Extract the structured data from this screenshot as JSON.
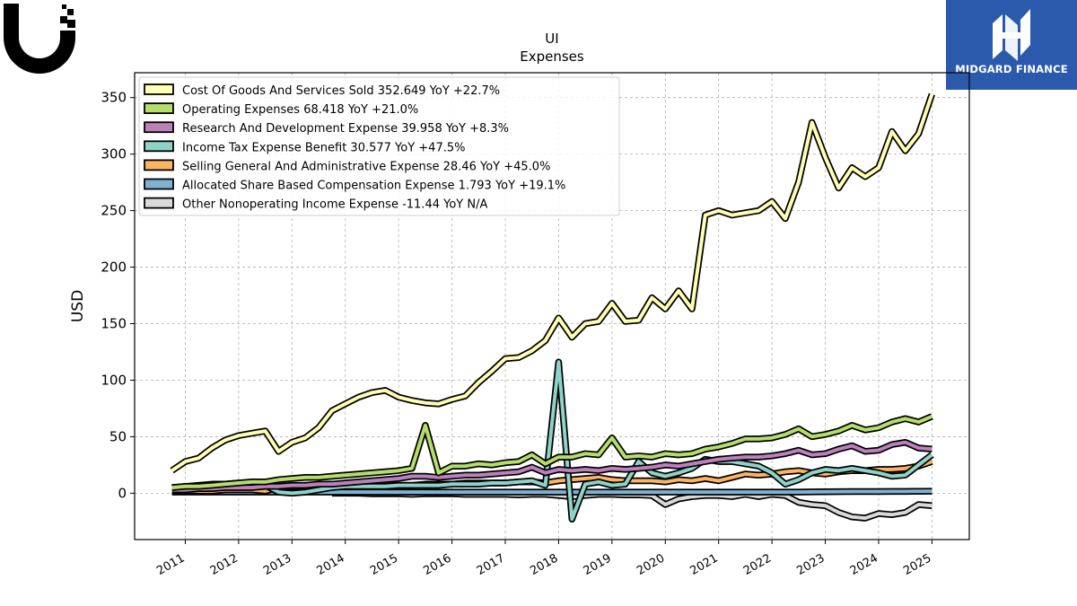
{
  "header": {
    "left_logo_icon": "ubiquiti-u-logo-icon",
    "right_logo_icon": "midgard-finance-logo-icon",
    "right_logo_text": "MIDGARD FINANCE"
  },
  "colors": {
    "brand_blue": "#2b5aad",
    "frame": "#000000",
    "grid": "#b0b0b0"
  },
  "chart_data": {
    "type": "line",
    "title": "UI",
    "subtitle": "Expenses",
    "ylabel": "USD",
    "xlabel": "",
    "xlim": [
      2010.05,
      2025.7
    ],
    "ylim": [
      -41,
      372
    ],
    "yticks": [
      0,
      50,
      100,
      150,
      200,
      250,
      300,
      350
    ],
    "xticks": [
      "2011",
      "2012",
      "2013",
      "2014",
      "2015",
      "2016",
      "2017",
      "2018",
      "2019",
      "2020",
      "2021",
      "2022",
      "2023",
      "2024",
      "2025"
    ],
    "grid": true,
    "legend_position": "top-left",
    "series": [
      {
        "name": "Cost Of Goods And Services Sold",
        "legend": "Cost Of Goods And Services Sold  352.649 YoY +22.7%",
        "color": "#ffffb3",
        "x": [
          2010.75,
          2011.0,
          2011.25,
          2011.5,
          2011.75,
          2012.0,
          2012.25,
          2012.5,
          2012.75,
          2013.0,
          2013.25,
          2013.5,
          2013.75,
          2014.0,
          2014.25,
          2014.5,
          2014.75,
          2015.0,
          2015.25,
          2015.5,
          2015.75,
          2016.0,
          2016.25,
          2016.5,
          2016.75,
          2017.0,
          2017.25,
          2017.5,
          2017.75,
          2018.0,
          2018.25,
          2018.5,
          2018.75,
          2019.0,
          2019.25,
          2019.5,
          2019.75,
          2020.0,
          2020.25,
          2020.5,
          2020.75,
          2021.0,
          2021.25,
          2021.5,
          2021.75,
          2022.0,
          2022.25,
          2022.5,
          2022.75,
          2023.0,
          2023.25,
          2023.5,
          2023.75,
          2024.0,
          2024.25,
          2024.5,
          2024.75,
          2025.0
        ],
        "y": [
          20,
          28,
          31,
          40,
          47,
          51,
          53,
          55,
          37,
          45,
          49,
          58,
          73,
          79,
          85,
          89,
          91,
          85,
          82,
          80,
          79,
          83,
          86,
          98,
          108,
          119,
          120,
          126,
          135,
          155,
          138,
          150,
          152,
          168,
          152,
          153,
          173,
          163,
          179,
          163,
          246,
          250,
          246,
          248,
          250,
          258,
          243,
          275,
          328,
          297,
          270,
          288,
          280,
          288,
          320,
          303,
          318,
          353
        ]
      },
      {
        "name": "Operating Expenses",
        "legend": "Operating Expenses  68.418 YoY +21.0%",
        "color": "#b3de69",
        "x": [
          2010.75,
          2011.0,
          2011.25,
          2011.5,
          2011.75,
          2012.0,
          2012.25,
          2012.5,
          2012.75,
          2013.0,
          2013.25,
          2013.5,
          2013.75,
          2014.0,
          2014.25,
          2014.5,
          2014.75,
          2015.0,
          2015.25,
          2015.5,
          2015.75,
          2016.0,
          2016.25,
          2016.5,
          2016.75,
          2017.0,
          2017.25,
          2017.5,
          2017.75,
          2018.0,
          2018.25,
          2018.5,
          2018.75,
          2019.0,
          2019.25,
          2019.5,
          2019.75,
          2020.0,
          2020.25,
          2020.5,
          2020.75,
          2021.0,
          2021.25,
          2021.5,
          2021.75,
          2022.0,
          2022.25,
          2022.5,
          2022.75,
          2023.0,
          2023.25,
          2023.5,
          2023.75,
          2024.0,
          2024.25,
          2024.5,
          2024.75,
          2025.0
        ],
        "y": [
          5,
          6,
          6,
          7,
          8,
          9,
          10,
          10,
          12,
          13,
          14,
          14,
          15,
          16,
          17,
          18,
          19,
          20,
          22,
          60,
          18,
          24,
          24,
          26,
          25,
          27,
          28,
          34,
          26,
          32,
          32,
          35,
          34,
          49,
          32,
          33,
          32,
          35,
          34,
          35,
          39,
          41,
          44,
          48,
          48,
          49,
          52,
          57,
          50,
          52,
          55,
          60,
          56,
          58,
          63,
          66,
          63,
          68
        ]
      },
      {
        "name": "Research And Development Expense",
        "legend": "Research And Development Expense  39.958 YoY +8.3%",
        "color": "#bc80bd",
        "x": [
          2010.75,
          2011.0,
          2011.25,
          2011.5,
          2011.75,
          2012.0,
          2012.25,
          2012.5,
          2012.75,
          2013.0,
          2013.25,
          2013.5,
          2013.75,
          2014.0,
          2014.25,
          2014.5,
          2014.75,
          2015.0,
          2015.25,
          2015.5,
          2015.75,
          2016.0,
          2016.25,
          2016.5,
          2016.75,
          2017.0,
          2017.25,
          2017.5,
          2017.75,
          2018.0,
          2018.25,
          2018.5,
          2018.75,
          2019.0,
          2019.25,
          2019.5,
          2019.75,
          2020.0,
          2020.25,
          2020.5,
          2020.75,
          2021.0,
          2021.25,
          2021.5,
          2021.75,
          2022.0,
          2022.25,
          2022.5,
          2022.75,
          2023.0,
          2023.25,
          2023.5,
          2023.75,
          2024.0,
          2024.25,
          2024.5,
          2024.75,
          2025.0
        ],
        "y": [
          3,
          3,
          4,
          4,
          5,
          5,
          5,
          6,
          6,
          7,
          7,
          8,
          8,
          9,
          10,
          11,
          12,
          13,
          15,
          15,
          14,
          15,
          16,
          16,
          17,
          18,
          19,
          23,
          18,
          21,
          20,
          21,
          20,
          22,
          21,
          22,
          23,
          25,
          24,
          26,
          28,
          30,
          31,
          32,
          32,
          33,
          35,
          38,
          34,
          35,
          39,
          42,
          37,
          38,
          43,
          45,
          40,
          39
        ]
      },
      {
        "name": "Income Tax Expense Benefit",
        "legend": "Income Tax Expense Benefit  30.577 YoY +47.5%",
        "color": "#8dd3c7",
        "x": [
          2010.75,
          2011.0,
          2011.25,
          2011.5,
          2011.75,
          2012.0,
          2012.25,
          2012.5,
          2012.75,
          2013.0,
          2013.25,
          2013.5,
          2013.75,
          2014.0,
          2014.25,
          2014.5,
          2014.75,
          2015.0,
          2015.25,
          2015.5,
          2015.75,
          2016.0,
          2016.25,
          2016.5,
          2016.75,
          2017.0,
          2017.25,
          2017.5,
          2017.75,
          2018.0,
          2018.25,
          2018.5,
          2018.75,
          2019.0,
          2019.25,
          2019.5,
          2019.75,
          2020.0,
          2020.25,
          2020.5,
          2020.75,
          2021.0,
          2021.25,
          2021.5,
          2021.75,
          2022.0,
          2022.25,
          2022.5,
          2022.75,
          2023.0,
          2023.25,
          2023.5,
          2023.75,
          2024.0,
          2024.25,
          2024.5,
          2024.75,
          2025.0
        ],
        "y": [
          5,
          6,
          7,
          8,
          8,
          9,
          8,
          7,
          1,
          0,
          1,
          3,
          5,
          6,
          6,
          6,
          6,
          7,
          7,
          7,
          7,
          8,
          8,
          8,
          9,
          9,
          10,
          11,
          7,
          116,
          -23,
          8,
          10,
          7,
          8,
          28,
          18,
          15,
          18,
          22,
          30,
          28,
          28,
          26,
          24,
          18,
          8,
          12,
          18,
          21,
          20,
          22,
          20,
          18,
          15,
          16,
          25,
          34
        ]
      },
      {
        "name": "Selling General And Administrative Expense",
        "legend": "Selling General And Administrative Expense  28.46 YoY +45.0%",
        "color": "#fdb462",
        "x": [
          2010.75,
          2011.0,
          2011.25,
          2011.5,
          2011.75,
          2012.0,
          2012.25,
          2012.5,
          2012.75,
          2013.0,
          2013.25,
          2013.5,
          2013.75,
          2014.0,
          2014.25,
          2014.5,
          2014.75,
          2015.0,
          2015.25,
          2015.5,
          2015.75,
          2016.0,
          2016.25,
          2016.5,
          2016.75,
          2017.0,
          2017.25,
          2017.5,
          2017.75,
          2018.0,
          2018.25,
          2018.5,
          2018.75,
          2019.0,
          2019.25,
          2019.5,
          2019.75,
          2020.0,
          2020.25,
          2020.5,
          2020.75,
          2021.0,
          2021.25,
          2021.5,
          2021.75,
          2022.0,
          2022.25,
          2022.5,
          2022.75,
          2023.0,
          2023.25,
          2023.5,
          2023.75,
          2024.0,
          2024.25,
          2024.5,
          2024.75,
          2025.0
        ],
        "y": [
          2,
          2,
          2,
          2,
          3,
          3,
          3,
          2,
          5,
          6,
          7,
          7,
          7,
          7,
          7,
          7,
          7,
          7,
          7,
          8,
          8,
          8,
          9,
          9,
          9,
          9,
          10,
          10,
          9,
          11,
          12,
          13,
          14,
          12,
          11,
          11,
          11,
          10,
          12,
          11,
          13,
          11,
          14,
          17,
          16,
          17,
          19,
          20,
          18,
          17,
          19,
          20,
          20,
          21,
          21,
          22,
          24,
          28
        ]
      },
      {
        "name": "Allocated Share Based Compensation Expense",
        "legend": "Allocated Share Based Compensation Expense  1.793 YoY +19.1%",
        "color": "#80b1d3",
        "x": [
          2010.75,
          2011.0,
          2011.25,
          2011.5,
          2011.75,
          2012.0,
          2012.25,
          2012.5,
          2012.75,
          2013.0,
          2013.25,
          2013.5,
          2013.75,
          2014.0,
          2014.25,
          2014.5,
          2014.75,
          2015.0,
          2015.25,
          2015.5,
          2015.75,
          2016.0,
          2016.25,
          2016.5,
          2016.75,
          2017.0,
          2017.25,
          2017.5,
          2017.75,
          2018.0,
          2018.25,
          2018.5,
          2018.75,
          2019.0,
          2019.25,
          2019.5,
          2019.75,
          2020.0,
          2020.25,
          2020.5,
          2020.75,
          2021.0,
          2021.25,
          2021.5,
          2021.75,
          2022.0,
          2022.25,
          2022.5,
          2022.75,
          2023.0,
          2023.25,
          2023.5,
          2023.75,
          2024.0,
          2024.25,
          2024.5,
          2024.75,
          2025.0
        ],
        "y": [
          1,
          1,
          1,
          1,
          1,
          1,
          1,
          1,
          1,
          1,
          1,
          1,
          1,
          1,
          1,
          1,
          1,
          1,
          1,
          1,
          1,
          1,
          1,
          1,
          1,
          1,
          1,
          1,
          1,
          1,
          1,
          1,
          1,
          1,
          1,
          1,
          1,
          1,
          1,
          1,
          1,
          1,
          1,
          1,
          1,
          1,
          1,
          1,
          1.2,
          1.3,
          1.4,
          1.5,
          1.5,
          1.5,
          1.6,
          1.6,
          1.7,
          1.8
        ]
      },
      {
        "name": "Other Nonoperating Income Expense",
        "legend": "Other Nonoperating Income Expense  -11.44 YoY N/A",
        "color": "#d9d9d9",
        "x": [
          2013.75,
          2014.0,
          2014.25,
          2014.5,
          2014.75,
          2015.0,
          2015.25,
          2015.5,
          2015.75,
          2016.0,
          2016.25,
          2016.5,
          2016.75,
          2017.0,
          2017.25,
          2017.5,
          2017.75,
          2018.0,
          2018.25,
          2018.5,
          2018.75,
          2019.0,
          2019.25,
          2019.5,
          2019.75,
          2020.0,
          2020.25,
          2020.5,
          2020.75,
          2021.0,
          2021.25,
          2021.5,
          2021.75,
          2022.0,
          2022.25,
          2022.5,
          2022.75,
          2023.0,
          2023.25,
          2023.5,
          2023.75,
          2024.0,
          2024.25,
          2024.5,
          2024.75,
          2025.0
        ],
        "y": [
          0,
          0,
          0,
          -0.5,
          -0.5,
          -0.5,
          -1,
          -0.5,
          -0.5,
          -0.5,
          -1,
          -1,
          -1,
          -1,
          -1.5,
          -1,
          -1,
          -2,
          -3,
          -2,
          -1,
          -1,
          -1.5,
          -1.5,
          -2,
          -10,
          -5,
          -3,
          -2,
          -2,
          -3,
          -1,
          -3,
          -1,
          -2,
          -8,
          -10,
          -11,
          -17,
          -21,
          -22,
          -18,
          -19,
          -17,
          -10,
          -11
        ]
      }
    ]
  }
}
